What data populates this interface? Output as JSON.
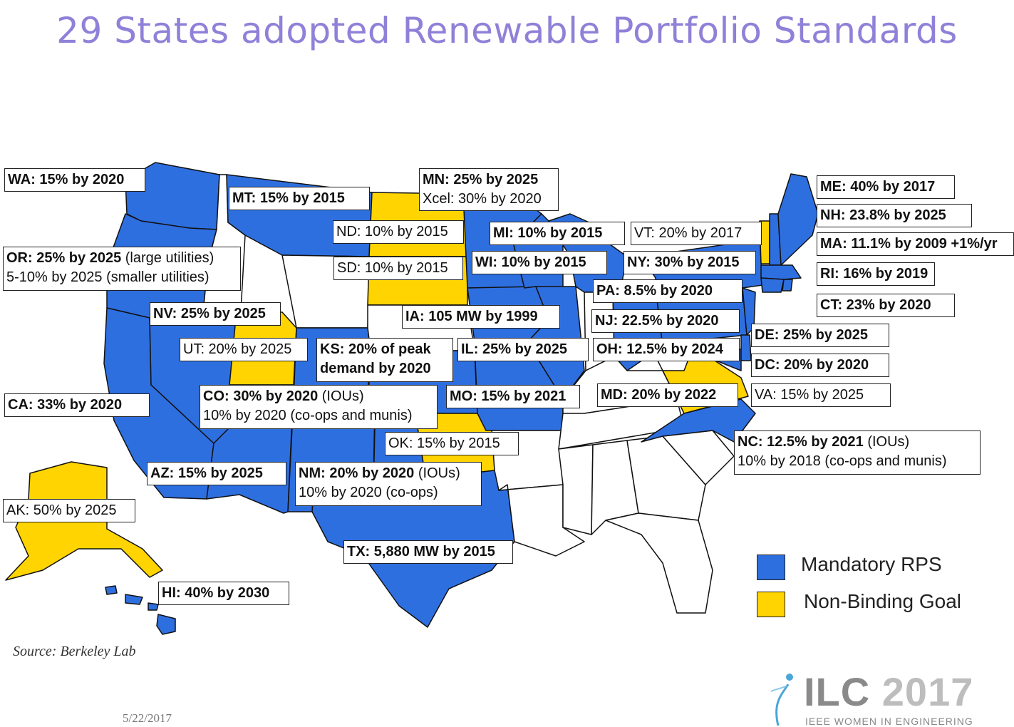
{
  "title": "29 States adopted Renewable Portfolio Standards",
  "colors": {
    "mandatory": "#2e6fe0",
    "goal": "#ffd400",
    "none": "#ffffff",
    "title": "#9080d8"
  },
  "labels": {
    "WA": [
      "WA: 15% by 2020",
      ""
    ],
    "MT": [
      "MT: 15% by 2015",
      ""
    ],
    "MN": [
      "MN: 25% by 2025",
      "Xcel: 30% by 2020"
    ],
    "ND": [
      "ND: 10% by 2015",
      ""
    ],
    "SD": [
      "SD: 10% by 2015",
      ""
    ],
    "MI": [
      "MI: 10% by 2015",
      ""
    ],
    "VT": [
      "VT: 20% by 2017",
      ""
    ],
    "ME": [
      "ME: 40% by 2017",
      ""
    ],
    "NH": [
      "NH: 23.8% by 2025",
      ""
    ],
    "MA": [
      "MA: 11.1% by 2009 +1%/yr",
      ""
    ],
    "RI": [
      "RI: 16% by 2019",
      ""
    ],
    "CT": [
      "CT: 23% by 2020",
      ""
    ],
    "OR": [
      "OR: 25% by 2025",
      " (large utilities)",
      "5-10% by 2025 (smaller utilities)"
    ],
    "WI": [
      "WI: 10% by 2015",
      ""
    ],
    "NY": [
      "NY: 30% by 2015",
      ""
    ],
    "PA": [
      "PA: 8.5% by 2020",
      ""
    ],
    "NV": [
      "NV: 25% by 2025",
      ""
    ],
    "IA": [
      "IA: 105 MW by 1999",
      ""
    ],
    "NJ": [
      "NJ: 22.5% by 2020",
      ""
    ],
    "DE": [
      "DE: 25% by 2025",
      ""
    ],
    "UT": [
      "UT: 20% by 2025",
      ""
    ],
    "KS": [
      "KS: 20% of peak",
      "demand by 2020"
    ],
    "IL": [
      "IL: 25% by 2025",
      ""
    ],
    "OH": [
      "OH: 12.5% by 2024",
      ""
    ],
    "DC": [
      "DC: 20% by 2020",
      ""
    ],
    "CA": [
      "CA: 33% by 2020",
      ""
    ],
    "CO": [
      "CO: 30% by 2020",
      " (IOUs)",
      "10% by 2020 (co-ops and munis)"
    ],
    "MO": [
      "MO: 15% by 2021",
      ""
    ],
    "MD": [
      "MD: 20% by 2022",
      ""
    ],
    "VA": [
      "VA: 15% by 2025",
      ""
    ],
    "OK": [
      "OK: 15% by 2015",
      ""
    ],
    "NC": [
      "NC: 12.5% by 2021",
      " (IOUs)",
      "10% by 2018 (co-ops and munis)"
    ],
    "AZ": [
      "AZ: 15% by 2025",
      ""
    ],
    "NM": [
      "NM: 20% by 2020",
      " (IOUs)",
      "10% by 2020 (co-ops)"
    ],
    "AK": [
      "AK: 50% by 2025",
      ""
    ],
    "TX": [
      "TX: 5,880 MW by 2015",
      ""
    ],
    "HI": [
      "HI: 40% by 2030",
      ""
    ]
  },
  "legend": {
    "mandatory": "Mandatory RPS",
    "goal": "Non-Binding Goal"
  },
  "source": "Source: Berkeley Lab",
  "date": "5/22/2017",
  "logo": {
    "main": "ILC",
    "year": "2017",
    "sub": "IEEE WOMEN IN ENGINEERING"
  }
}
